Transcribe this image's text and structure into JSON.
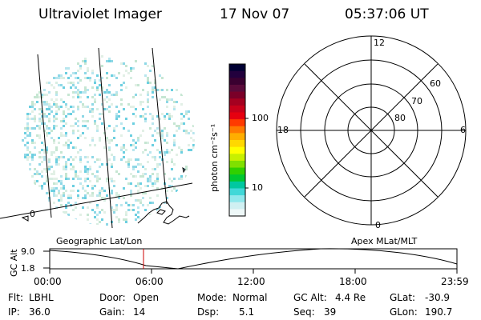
{
  "header": {
    "title": "Ultraviolet Imager",
    "date": "17 Nov 07",
    "time": "05:37:06 UT"
  },
  "colorbar": {
    "unit_label": "photon cm⁻²s⁻¹",
    "ticks": [
      "100",
      "10"
    ],
    "colors": [
      "#000033",
      "#22003d",
      "#3a0030",
      "#5a0a3a",
      "#7a0028",
      "#a40020",
      "#c8001a",
      "#e60010",
      "#ff3a00",
      "#ff7a00",
      "#ffae00",
      "#ffd800",
      "#ffff00",
      "#c8f000",
      "#80e000",
      "#30d000",
      "#00c830",
      "#00c8a0",
      "#40d8d8",
      "#90e8ec",
      "#d0f0f2",
      "#eef8f8"
    ]
  },
  "image_panel": {
    "mlat_label": "0",
    "pixel_colors": [
      "#b8e6ee",
      "#8ed8e6",
      "#d8eee2",
      "#c6e6d2",
      "#6ccfe0",
      "#e2f0e6"
    ]
  },
  "polar_plot": {
    "mlt_labels": {
      "top": "12",
      "left": "18",
      "right": "6",
      "bottom": "0"
    },
    "lat_labels": [
      "60",
      "70",
      "80"
    ]
  },
  "timeline": {
    "left_label": "Geographic Lat/Lon",
    "right_label": "Apex MLat/MLT",
    "y_axis_label": "GC Alt",
    "y_ticks": [
      "9.0",
      "1.8"
    ],
    "x_ticks": [
      "00:00",
      "06:00",
      "12:00",
      "18:00",
      "23:59"
    ],
    "marker_color": "#cc0000"
  },
  "info": {
    "row1": [
      {
        "key": "Flt:",
        "value": "LBHL"
      },
      {
        "key": "Door:",
        "value": "Open"
      },
      {
        "key": "Mode:",
        "value": "Normal"
      },
      {
        "key": "GC Alt:",
        "value": "4.4 Re"
      },
      {
        "key": "GLat:",
        "value": "-30.9"
      }
    ],
    "row2": [
      {
        "key": "IP:",
        "value": "36.0"
      },
      {
        "key": "Gain:",
        "value": "14"
      },
      {
        "key": "Dsp:",
        "value": "5.1"
      },
      {
        "key": "Seq:",
        "value": "39"
      },
      {
        "key": "GLon:",
        "value": "190.7"
      }
    ]
  }
}
